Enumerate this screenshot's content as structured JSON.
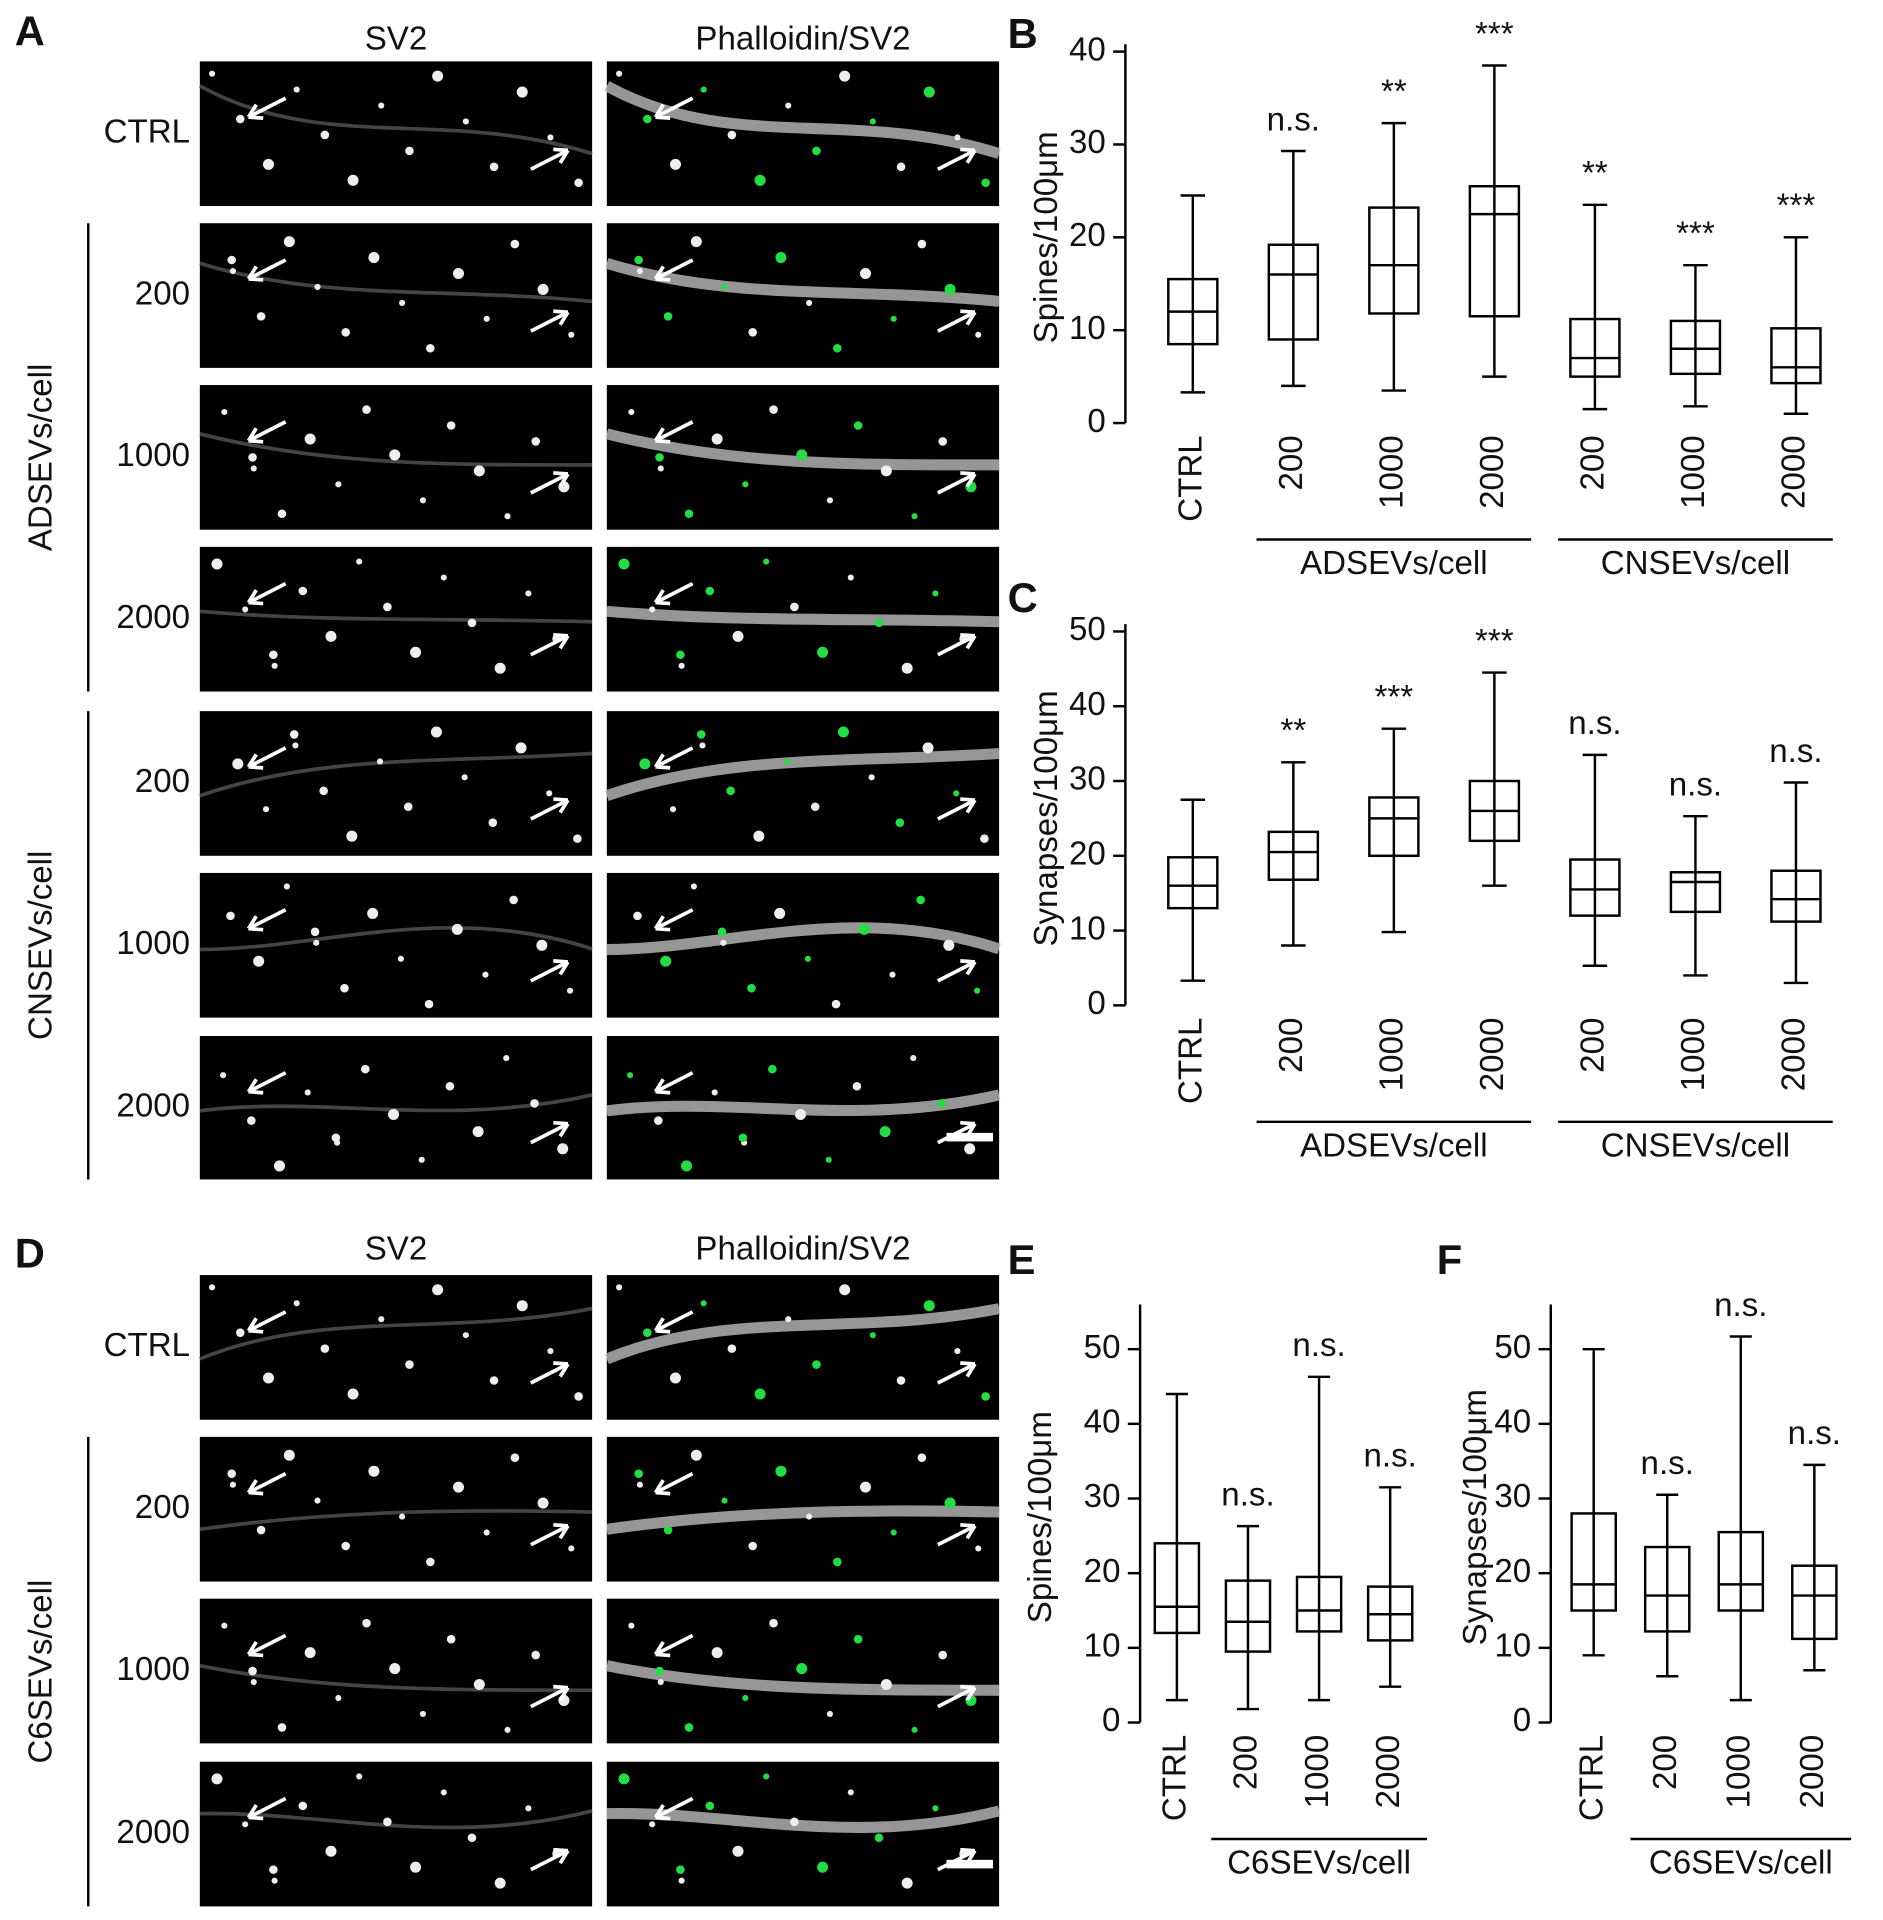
{
  "image_panels": {
    "A": {
      "panel_label": "A",
      "columns": [
        "SV2",
        "Phalloidin/SV2"
      ],
      "rows": [
        {
          "labels": [
            "CTRL"
          ]
        },
        {
          "label": "ADSEVs/cell",
          "labels": [
            "200",
            "1000",
            "2000"
          ]
        },
        {
          "label": "CNSEVs/cell",
          "labels": [
            "200",
            "1000",
            "2000"
          ]
        }
      ]
    },
    "D": {
      "panel_label": "D",
      "columns": [
        "SV2",
        "Phalloidin/SV2"
      ],
      "rows": [
        {
          "labels": [
            "CTRL"
          ]
        },
        {
          "label": "C6SEVs/cell",
          "labels": [
            "200",
            "1000",
            "2000"
          ]
        }
      ]
    }
  },
  "chart_data": [
    {
      "type": "box",
      "panel_label": "B",
      "y_label": "Spines/100μm",
      "ylim": [
        0,
        40
      ],
      "yticks": [
        0,
        10,
        20,
        30,
        40
      ],
      "groups": [
        {
          "boxes": [
            {
              "category": "CTRL",
              "min": 3.3,
              "q1": 8.5,
              "median": 12,
              "q3": 15.5,
              "max": 24.5
            }
          ]
        },
        {
          "label": "ADSEVs/cell",
          "boxes": [
            {
              "category": "200",
              "min": 4,
              "q1": 9,
              "median": 16,
              "q3": 19.2,
              "max": 29.3,
              "annotation": "n.s."
            },
            {
              "category": "1000",
              "min": 3.5,
              "q1": 11.8,
              "median": 17,
              "q3": 23.2,
              "max": 32.3,
              "annotation": "**"
            },
            {
              "category": "2000",
              "min": 5,
              "q1": 11.5,
              "median": 22.5,
              "q3": 25.5,
              "max": 38.5,
              "annotation": "***"
            }
          ]
        },
        {
          "label": "CNSEVs/cell",
          "boxes": [
            {
              "category": "200",
              "min": 1.5,
              "q1": 5,
              "median": 7,
              "q3": 11.2,
              "max": 23.5,
              "annotation": "**"
            },
            {
              "category": "1000",
              "min": 1.8,
              "q1": 5.3,
              "median": 8,
              "q3": 11,
              "max": 17,
              "annotation": "***"
            },
            {
              "category": "2000",
              "min": 1,
              "q1": 4.3,
              "median": 6,
              "q3": 10.2,
              "max": 20,
              "annotation": "***"
            }
          ]
        }
      ]
    },
    {
      "type": "box",
      "panel_label": "C",
      "y_label": "Synapses/100μm",
      "ylim": [
        0,
        50
      ],
      "yticks": [
        0,
        10,
        20,
        30,
        40,
        50
      ],
      "groups": [
        {
          "boxes": [
            {
              "category": "CTRL",
              "min": 3.3,
              "q1": 13,
              "median": 16,
              "q3": 19.8,
              "max": 27.5
            }
          ]
        },
        {
          "label": "ADSEVs/cell",
          "boxes": [
            {
              "category": "200",
              "min": 8,
              "q1": 16.8,
              "median": 20.5,
              "q3": 23.2,
              "max": 32.5,
              "annotation": "**"
            },
            {
              "category": "1000",
              "min": 9.8,
              "q1": 20,
              "median": 25,
              "q3": 27.8,
              "max": 37,
              "annotation": "***"
            },
            {
              "category": "2000",
              "min": 16,
              "q1": 22,
              "median": 26,
              "q3": 30,
              "max": 44.5,
              "annotation": "***"
            }
          ]
        },
        {
          "label": "CNSEVs/cell",
          "boxes": [
            {
              "category": "200",
              "min": 5.3,
              "q1": 12,
              "median": 15.5,
              "q3": 19.5,
              "max": 33.5,
              "annotation": "n.s."
            },
            {
              "category": "1000",
              "min": 4,
              "q1": 12.5,
              "median": 16.5,
              "q3": 17.8,
              "max": 25.3,
              "annotation": "n.s."
            },
            {
              "category": "2000",
              "min": 3,
              "q1": 11.2,
              "median": 14.2,
              "q3": 18,
              "max": 29.8,
              "annotation": "n.s."
            }
          ]
        }
      ]
    },
    {
      "type": "box",
      "panel_label": "E",
      "y_label": "Spines/100μm",
      "ylim": [
        0,
        55
      ],
      "yticks": [
        0,
        10,
        20,
        30,
        40,
        50
      ],
      "groups": [
        {
          "boxes": [
            {
              "category": "CTRL",
              "min": 3,
              "q1": 12,
              "median": 15.5,
              "q3": 24,
              "max": 44
            }
          ]
        },
        {
          "label": "C6SEVs/cell",
          "boxes": [
            {
              "category": "200",
              "min": 1.8,
              "q1": 9.5,
              "median": 13.5,
              "q3": 19,
              "max": 26.3,
              "annotation": "n.s."
            },
            {
              "category": "1000",
              "min": 3,
              "q1": 12.2,
              "median": 15,
              "q3": 19.5,
              "max": 46.3,
              "annotation": "n.s."
            },
            {
              "category": "2000",
              "min": 4.8,
              "q1": 11,
              "median": 14.5,
              "q3": 18.2,
              "max": 31.5,
              "annotation": "n.s."
            }
          ]
        }
      ]
    },
    {
      "type": "box",
      "panel_label": "F",
      "y_label": "Synapses/100μm",
      "ylim": [
        0,
        55
      ],
      "yticks": [
        0,
        10,
        20,
        30,
        40,
        50
      ],
      "groups": [
        {
          "boxes": [
            {
              "category": "CTRL",
              "min": 9,
              "q1": 15,
              "median": 18.5,
              "q3": 28,
              "max": 50
            }
          ]
        },
        {
          "label": "C6SEVs/cell",
          "boxes": [
            {
              "category": "200",
              "min": 6.2,
              "q1": 12.2,
              "median": 17,
              "q3": 23.5,
              "max": 30.5,
              "annotation": "n.s."
            },
            {
              "category": "1000",
              "min": 3,
              "q1": 15,
              "median": 18.5,
              "q3": 25.5,
              "max": 51.7,
              "annotation": "n.s."
            },
            {
              "category": "2000",
              "min": 7,
              "q1": 11.2,
              "median": 17,
              "q3": 21,
              "max": 34.5,
              "annotation": "n.s."
            }
          ]
        }
      ]
    }
  ]
}
